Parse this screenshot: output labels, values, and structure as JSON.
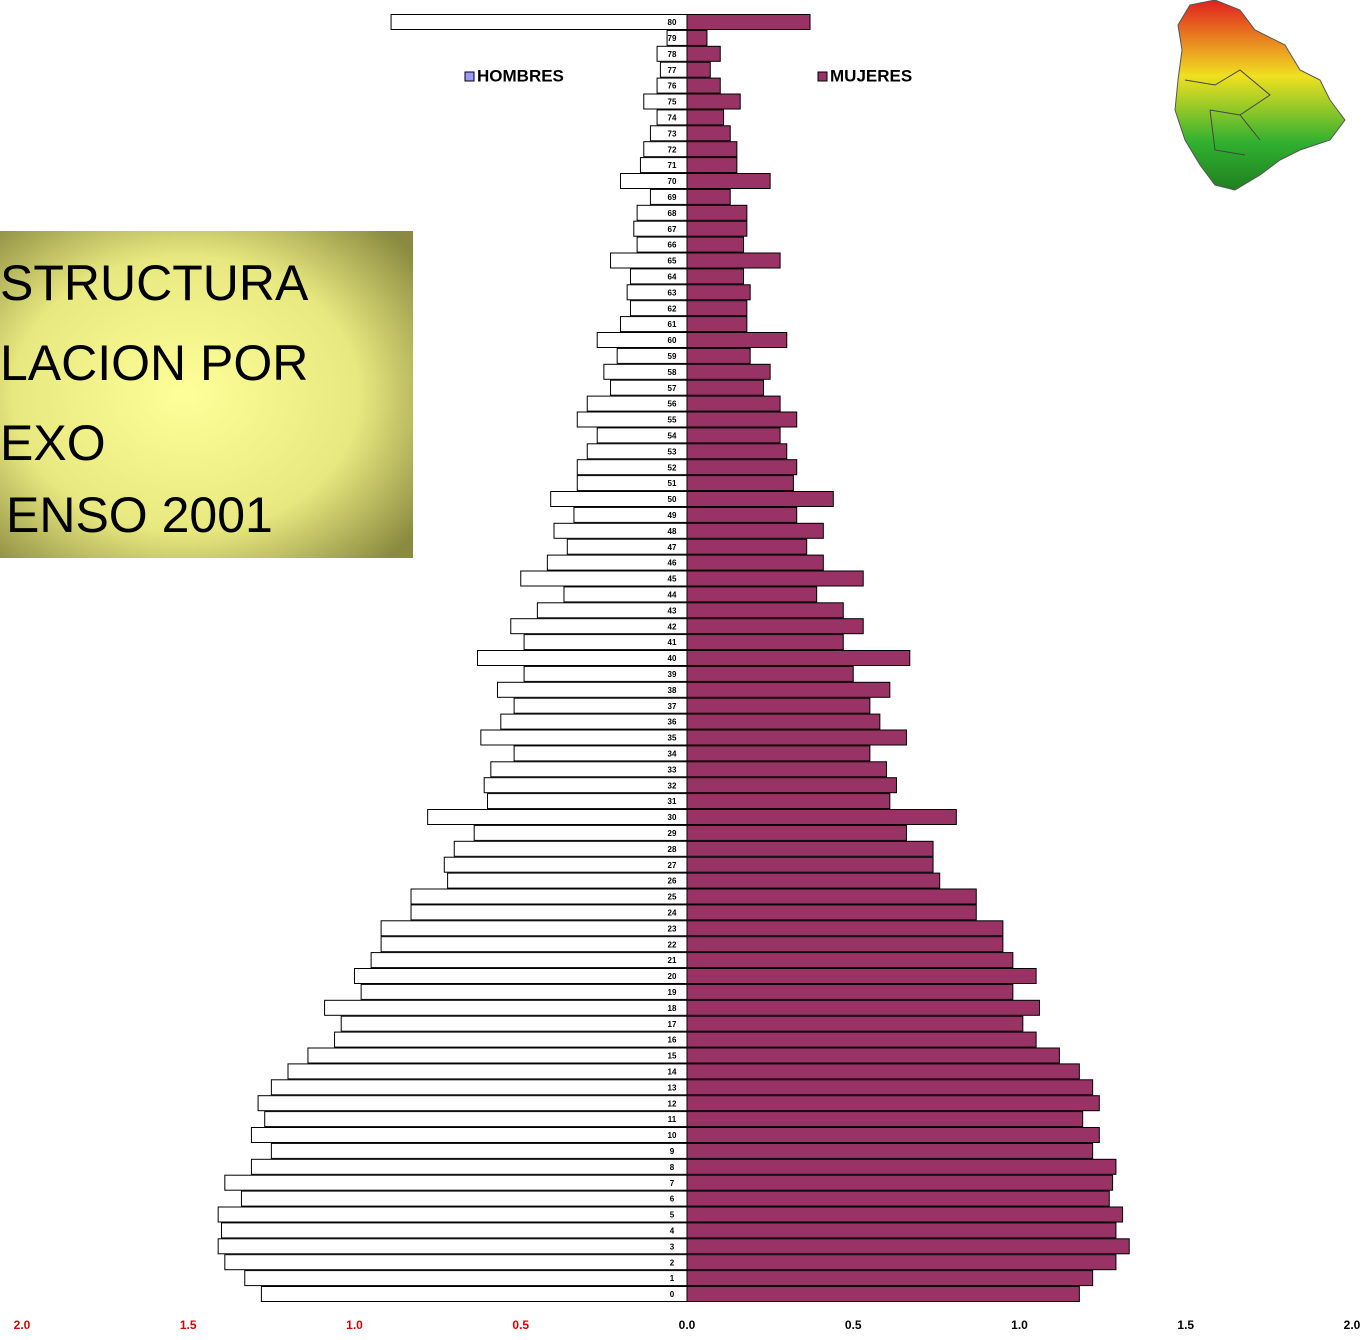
{
  "chart_data": {
    "type": "pyramid",
    "title_lines": [
      "STRUCTURA",
      "LACION POR",
      "EXO",
      "ENSO 2001"
    ],
    "categories": [
      "0",
      "1",
      "2",
      "3",
      "4",
      "5",
      "6",
      "7",
      "8",
      "9",
      "10",
      "11",
      "12",
      "13",
      "14",
      "15",
      "16",
      "17",
      "18",
      "19",
      "20",
      "21",
      "22",
      "23",
      "24",
      "25",
      "26",
      "27",
      "28",
      "29",
      "30",
      "31",
      "32",
      "33",
      "34",
      "35",
      "36",
      "37",
      "38",
      "39",
      "40",
      "41",
      "42",
      "43",
      "44",
      "45",
      "46",
      "47",
      "48",
      "49",
      "50",
      "51",
      "52",
      "53",
      "54",
      "55",
      "56",
      "57",
      "58",
      "59",
      "60",
      "61",
      "62",
      "63",
      "64",
      "65",
      "66",
      "67",
      "68",
      "69",
      "70",
      "71",
      "72",
      "73",
      "74",
      "75",
      "76",
      "77",
      "78",
      "79",
      "80"
    ],
    "series": [
      {
        "name": "HOMBRES",
        "color": "#ffffff",
        "legend_color": "#9999ff",
        "values": [
          -1.28,
          -1.33,
          -1.39,
          -1.41,
          -1.4,
          -1.41,
          -1.34,
          -1.39,
          -1.31,
          -1.25,
          -1.31,
          -1.27,
          -1.29,
          -1.25,
          -1.2,
          -1.14,
          -1.06,
          -1.04,
          -1.09,
          -0.98,
          -1.0,
          -0.95,
          -0.92,
          -0.92,
          -0.83,
          -0.83,
          -0.72,
          -0.73,
          -0.7,
          -0.64,
          -0.78,
          -0.6,
          -0.61,
          -0.59,
          -0.52,
          -0.62,
          -0.56,
          -0.52,
          -0.57,
          -0.49,
          -0.63,
          -0.49,
          -0.53,
          -0.45,
          -0.37,
          -0.5,
          -0.42,
          -0.36,
          -0.4,
          -0.34,
          -0.41,
          -0.33,
          -0.33,
          -0.3,
          -0.27,
          -0.33,
          -0.3,
          -0.23,
          -0.25,
          -0.21,
          -0.27,
          -0.2,
          -0.17,
          -0.18,
          -0.17,
          -0.23,
          -0.15,
          -0.16,
          -0.15,
          -0.11,
          -0.2,
          -0.14,
          -0.13,
          -0.11,
          -0.09,
          -0.13,
          -0.09,
          -0.08,
          -0.09,
          -0.06,
          -0.89
        ]
      },
      {
        "name": "MUJERES",
        "color": "#993366",
        "legend_color": "#993366",
        "values": [
          1.18,
          1.22,
          1.29,
          1.33,
          1.29,
          1.31,
          1.27,
          1.28,
          1.29,
          1.22,
          1.24,
          1.19,
          1.24,
          1.22,
          1.18,
          1.12,
          1.05,
          1.01,
          1.06,
          0.98,
          1.05,
          0.98,
          0.95,
          0.95,
          0.87,
          0.87,
          0.76,
          0.74,
          0.74,
          0.66,
          0.81,
          0.61,
          0.63,
          0.6,
          0.55,
          0.66,
          0.58,
          0.55,
          0.61,
          0.5,
          0.67,
          0.47,
          0.53,
          0.47,
          0.39,
          0.53,
          0.41,
          0.36,
          0.41,
          0.33,
          0.44,
          0.32,
          0.33,
          0.3,
          0.28,
          0.33,
          0.28,
          0.23,
          0.25,
          0.19,
          0.3,
          0.18,
          0.18,
          0.19,
          0.17,
          0.28,
          0.17,
          0.18,
          0.18,
          0.13,
          0.25,
          0.15,
          0.15,
          0.13,
          0.11,
          0.16,
          0.1,
          0.07,
          0.1,
          0.06,
          0.37
        ]
      }
    ],
    "xlim": [
      -2,
      2
    ],
    "xticks": [
      {
        "value": -2,
        "label": "2.0"
      },
      {
        "value": -1.5,
        "label": "1.5"
      },
      {
        "value": -1,
        "label": "1.0"
      },
      {
        "value": -0.5,
        "label": "0.5"
      },
      {
        "value": 0,
        "label": "0.0"
      },
      0.5,
      {
        "value": 1,
        "label": "1.0"
      },
      1.5,
      {
        "value": 2,
        "label": "2.0"
      }
    ]
  }
}
